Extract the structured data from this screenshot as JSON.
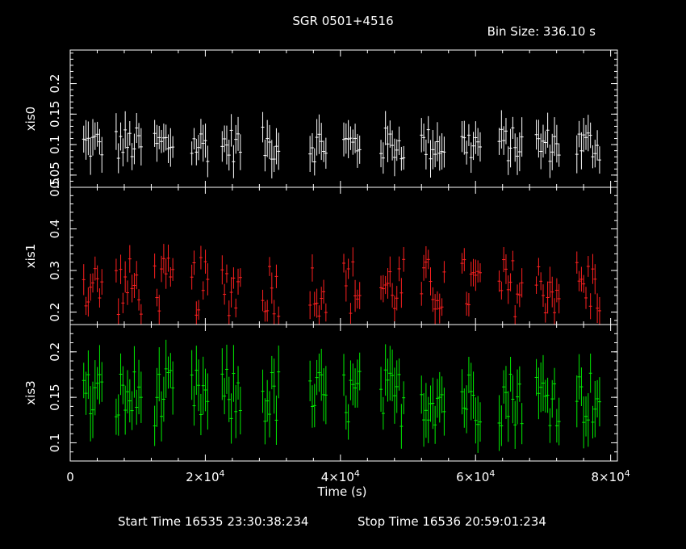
{
  "header": {
    "title": "SGR 0501+4516",
    "bin_size": "Bin Size: 336.10 s"
  },
  "footer": {
    "start_time": "Start Time 16535 23:30:38:234",
    "stop_time": "Stop Time 16536 20:59:01:234"
  },
  "colors": {
    "xis0": "#ffffff",
    "xis1": "#ff2020",
    "xis3": "#00ee00",
    "axes": "#ffffff",
    "background": "#000000"
  },
  "chart_data": {
    "type": "scatter",
    "title": "SGR 0501+4516",
    "xlabel": "Time (s)",
    "xlim": [
      0,
      81000
    ],
    "x_ticks": [
      {
        "value": 0,
        "base": "0",
        "exp": ""
      },
      {
        "value": 20000,
        "base": "2×10",
        "exp": "4"
      },
      {
        "value": 40000,
        "base": "4×10",
        "exp": "4"
      },
      {
        "value": 60000,
        "base": "6×10",
        "exp": "4"
      },
      {
        "value": 80000,
        "base": "8×10",
        "exp": "4"
      }
    ],
    "panels": [
      {
        "name": "xis0",
        "ylabel": "xis0",
        "color": "#ffffff",
        "ylim": [
          0.03,
          0.255
        ],
        "y_ticks": [
          "0.05",
          "0.1",
          "0.15",
          "0.2"
        ],
        "y_tick_values": [
          0.05,
          0.1,
          0.15,
          0.2
        ],
        "err": 0.025,
        "mean": 0.1,
        "spread": 0.018
      },
      {
        "name": "xis1",
        "ylabel": "xis1",
        "color": "#ff2020",
        "ylim": [
          0.17,
          0.5
        ],
        "y_ticks": [
          "0.2",
          "0.3",
          "0.4",
          "0.5"
        ],
        "y_tick_values": [
          0.2,
          0.3,
          0.4,
          0.5
        ],
        "err": 0.03,
        "mean": 0.26,
        "spread": 0.045
      },
      {
        "name": "xis3",
        "ylabel": "xis3",
        "color": "#00ee00",
        "ylim": [
          0.08,
          0.23
        ],
        "y_ticks": [
          "0.1",
          "0.15",
          "0.2"
        ],
        "y_tick_values": [
          0.1,
          0.15,
          0.2
        ],
        "err": 0.025,
        "mean": 0.15,
        "spread": 0.02
      }
    ],
    "segments_time_ranges": [
      [
        2000,
        5000
      ],
      [
        6800,
        10500
      ],
      [
        12500,
        15500
      ],
      [
        18000,
        20500
      ],
      [
        22500,
        25500
      ],
      [
        28500,
        31000
      ],
      [
        35500,
        38000
      ],
      [
        40500,
        43000
      ],
      [
        46000,
        49500
      ],
      [
        52000,
        55500
      ],
      [
        58000,
        61000
      ],
      [
        63500,
        67000
      ],
      [
        69000,
        72500
      ],
      [
        75000,
        78500
      ]
    ]
  }
}
